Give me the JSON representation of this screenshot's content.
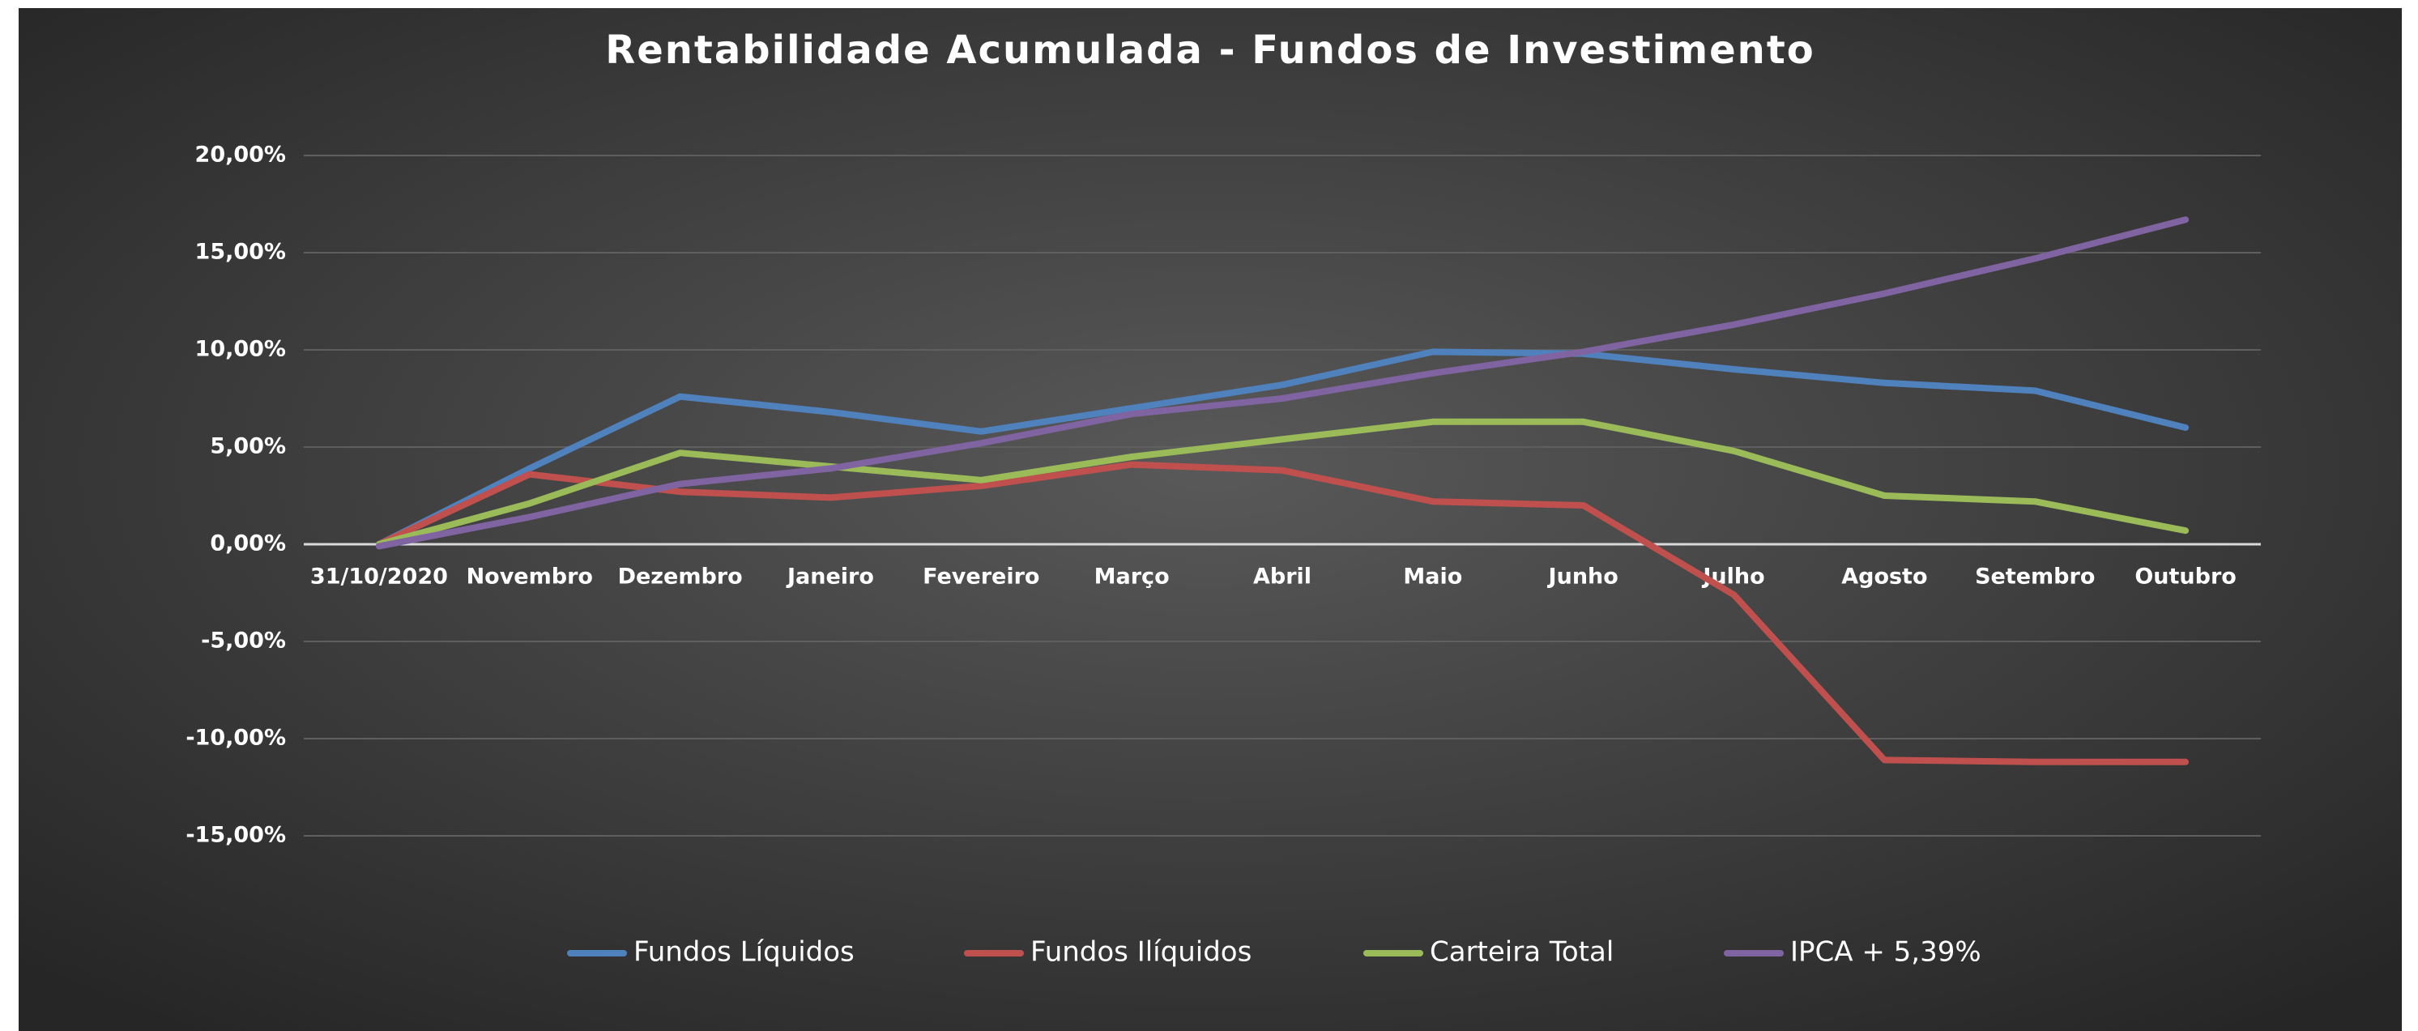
{
  "chart_data": {
    "type": "line",
    "title": "Rentabilidade Acumulada - Fundos de Investimento",
    "categories": [
      "31/10/2020",
      "Novembro",
      "Dezembro",
      "Janeiro",
      "Fevereiro",
      "Março",
      "Abril",
      "Maio",
      "Junho",
      "Julho",
      "Agosto",
      "Setembro",
      "Outubro"
    ],
    "series": [
      {
        "name": "Fundos Líquidos",
        "color": "#4f81bd",
        "values": [
          0,
          3.9,
          7.6,
          6.8,
          5.8,
          7.0,
          8.2,
          9.9,
          9.8,
          9.0,
          8.3,
          7.9,
          6.0
        ]
      },
      {
        "name": "Fundos Ilíquidos",
        "color": "#c0504d",
        "values": [
          0,
          3.6,
          2.7,
          2.4,
          3.0,
          4.1,
          3.8,
          2.2,
          2.0,
          -2.6,
          -11.1,
          -11.2,
          -11.2
        ]
      },
      {
        "name": "Carteira Total",
        "color": "#9bbb59",
        "values": [
          0,
          2.1,
          4.7,
          4.0,
          3.3,
          4.5,
          5.4,
          6.3,
          6.3,
          4.8,
          2.5,
          2.2,
          0.7
        ]
      },
      {
        "name": "IPCA + 5,39%",
        "color": "#8064a2",
        "values": [
          -0.1,
          1.4,
          3.1,
          3.9,
          5.2,
          6.7,
          7.5,
          8.8,
          9.9,
          11.3,
          12.9,
          14.7,
          16.7
        ]
      }
    ],
    "ylim": [
      -15,
      20
    ],
    "yticks": [
      {
        "value": -15,
        "label": "-15,00%"
      },
      {
        "value": -10,
        "label": "-10,00%"
      },
      {
        "value": -5,
        "label": "-5,00%"
      },
      {
        "value": 0,
        "label": "0,00%"
      },
      {
        "value": 5,
        "label": "5,00%"
      },
      {
        "value": 10,
        "label": "10,00%"
      },
      {
        "value": 15,
        "label": "15,00%"
      },
      {
        "value": 20,
        "label": "20,00%"
      }
    ],
    "grid": true,
    "legend": "bottom"
  }
}
